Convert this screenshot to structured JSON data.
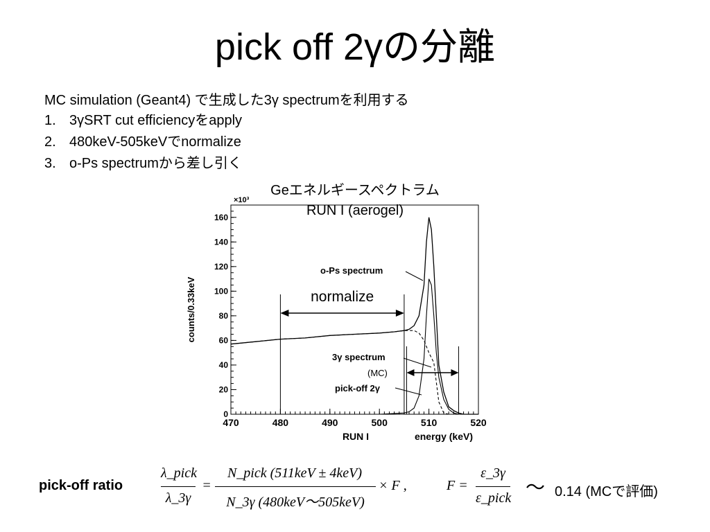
{
  "slide": {
    "title": "pick off 2γの分離",
    "intro": "MC simulation (Geant4) で生成した3γ spectrumを利用する",
    "steps": [
      {
        "num": "1.",
        "text": "3γSRT cut efficiencyをapply"
      },
      {
        "num": "2.",
        "text": "480keV-505keVでnormalize"
      },
      {
        "num": "3.",
        "text": "o-Ps spectrumから差し引く"
      }
    ]
  },
  "chart_data": {
    "type": "line",
    "title": "Geエネルギースペクトラム",
    "subtitle": "RUN I (aerogel)",
    "xlabel": "energy (keV)",
    "xlabel_left": "RUN I",
    "ylabel": "counts/0.33keV",
    "y_multiplier": "×10³",
    "xlim": [
      470,
      520
    ],
    "ylim": [
      0,
      170
    ],
    "x_ticks": [
      470,
      480,
      490,
      500,
      510,
      520
    ],
    "y_ticks": [
      0,
      20,
      40,
      60,
      80,
      100,
      120,
      140,
      160
    ],
    "series": [
      {
        "name": "o-Ps spectrum",
        "x": [
          470,
          475,
          480,
          485,
          490,
          495,
          500,
          503,
          505,
          506,
          507,
          508,
          509,
          509.5,
          510,
          510.5,
          511,
          511.5,
          512,
          513,
          514,
          515,
          516,
          517,
          520
        ],
        "values": [
          57,
          59,
          61,
          62,
          64,
          65,
          66,
          67,
          68,
          69,
          72,
          80,
          105,
          140,
          160,
          150,
          120,
          80,
          40,
          18,
          6,
          3,
          1,
          0,
          0
        ]
      },
      {
        "name": "3γ spectrum",
        "x": [
          470,
          475,
          480,
          485,
          490,
          495,
          500,
          503,
          505,
          506,
          507,
          508,
          509,
          510,
          511,
          512,
          513,
          514,
          520
        ],
        "values": [
          57,
          59,
          61,
          62,
          64,
          65,
          66,
          67,
          68,
          68,
          68,
          66,
          60,
          50,
          42,
          10,
          1,
          0,
          0
        ]
      },
      {
        "name": "pick-off 2γ",
        "x": [
          470,
          480,
          490,
          500,
          505,
          506,
          507,
          508,
          509,
          509.5,
          510,
          510.5,
          511,
          511.5,
          512,
          513,
          514,
          515,
          516,
          520
        ],
        "values": [
          0,
          0,
          0,
          0,
          1,
          2,
          5,
          15,
          45,
          80,
          110,
          105,
          80,
          50,
          30,
          12,
          4,
          1,
          0,
          0
        ]
      }
    ],
    "annotations": {
      "normalize": "normalize",
      "normalize_range": [
        480,
        505
      ],
      "mc_note": "(MC)",
      "peak_range": [
        505.5,
        516
      ]
    }
  },
  "formula": {
    "label": "pick-off ratio",
    "lhs_num": "λ_pick",
    "lhs_den": "λ_3γ",
    "rhs_num": "N_pick (511keV ± 4keV)",
    "rhs_den": "N_3γ (480keV〜505keV)",
    "times_f": "× F ,",
    "f_lhs": "F =",
    "f_num": "ε_3γ",
    "f_den": "ε_pick",
    "tilde": "〜",
    "result": "0.14 (MCで評価)"
  }
}
